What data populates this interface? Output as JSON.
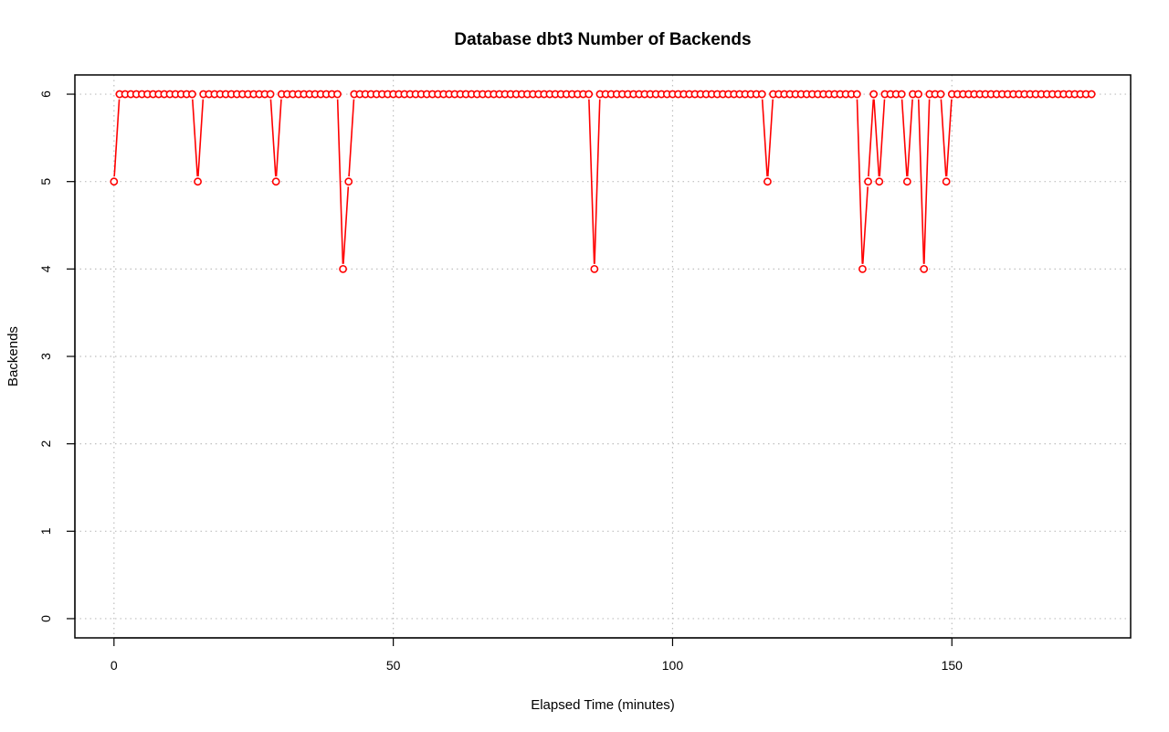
{
  "chart_data": {
    "type": "line",
    "title": "Database dbt3 Number of Backends",
    "xlabel": "Elapsed Time (minutes)",
    "ylabel": "Backends",
    "xlim": [
      -7,
      182
    ],
    "ylim": [
      -0.22,
      6.22
    ],
    "x_ticks": [
      0,
      50,
      100,
      150
    ],
    "y_ticks": [
      0,
      1,
      2,
      3,
      4,
      5,
      6
    ],
    "grid": true,
    "markers": "open-circle",
    "series": [
      {
        "color": "#ff0000",
        "x": [
          0,
          1,
          2,
          3,
          4,
          5,
          6,
          7,
          8,
          9,
          10,
          11,
          12,
          13,
          14,
          15,
          16,
          17,
          18,
          19,
          20,
          21,
          22,
          23,
          24,
          25,
          26,
          27,
          28,
          29,
          30,
          31,
          32,
          33,
          34,
          35,
          36,
          37,
          38,
          39,
          40,
          41,
          42,
          43,
          44,
          45,
          46,
          47,
          48,
          49,
          50,
          51,
          52,
          53,
          54,
          55,
          56,
          57,
          58,
          59,
          60,
          61,
          62,
          63,
          64,
          65,
          66,
          67,
          68,
          69,
          70,
          71,
          72,
          73,
          74,
          75,
          76,
          77,
          78,
          79,
          80,
          81,
          82,
          83,
          84,
          85,
          86,
          87,
          88,
          89,
          90,
          91,
          92,
          93,
          94,
          95,
          96,
          97,
          98,
          99,
          100,
          101,
          102,
          103,
          104,
          105,
          106,
          107,
          108,
          109,
          110,
          111,
          112,
          113,
          114,
          115,
          116,
          117,
          118,
          119,
          120,
          121,
          122,
          123,
          124,
          125,
          126,
          127,
          128,
          129,
          130,
          131,
          132,
          133,
          134,
          135,
          136,
          137,
          138,
          139,
          140,
          141,
          142,
          143,
          144,
          145,
          146,
          147,
          148,
          149,
          150,
          151,
          152,
          153,
          154,
          155,
          156,
          157,
          158,
          159,
          160,
          161,
          162,
          163,
          164,
          165,
          166,
          167,
          168,
          169,
          170,
          171,
          172,
          173,
          174,
          175
        ],
        "values": [
          5,
          6,
          6,
          6,
          6,
          6,
          6,
          6,
          6,
          6,
          6,
          6,
          6,
          6,
          6,
          5,
          6,
          6,
          6,
          6,
          6,
          6,
          6,
          6,
          6,
          6,
          6,
          6,
          6,
          5,
          6,
          6,
          6,
          6,
          6,
          6,
          6,
          6,
          6,
          6,
          6,
          4,
          5,
          6,
          6,
          6,
          6,
          6,
          6,
          6,
          6,
          6,
          6,
          6,
          6,
          6,
          6,
          6,
          6,
          6,
          6,
          6,
          6,
          6,
          6,
          6,
          6,
          6,
          6,
          6,
          6,
          6,
          6,
          6,
          6,
          6,
          6,
          6,
          6,
          6,
          6,
          6,
          6,
          6,
          6,
          6,
          4,
          6,
          6,
          6,
          6,
          6,
          6,
          6,
          6,
          6,
          6,
          6,
          6,
          6,
          6,
          6,
          6,
          6,
          6,
          6,
          6,
          6,
          6,
          6,
          6,
          6,
          6,
          6,
          6,
          6,
          6,
          5,
          6,
          6,
          6,
          6,
          6,
          6,
          6,
          6,
          6,
          6,
          6,
          6,
          6,
          6,
          6,
          6,
          4,
          5,
          6,
          5,
          6,
          6,
          6,
          6,
          5,
          6,
          6,
          4,
          6,
          6,
          6,
          5,
          6,
          6,
          6,
          6,
          6,
          6,
          6,
          6,
          6,
          6,
          6,
          6,
          6,
          6,
          6,
          6,
          6,
          6,
          6,
          6,
          6,
          6,
          6,
          6,
          6,
          6
        ]
      }
    ]
  }
}
